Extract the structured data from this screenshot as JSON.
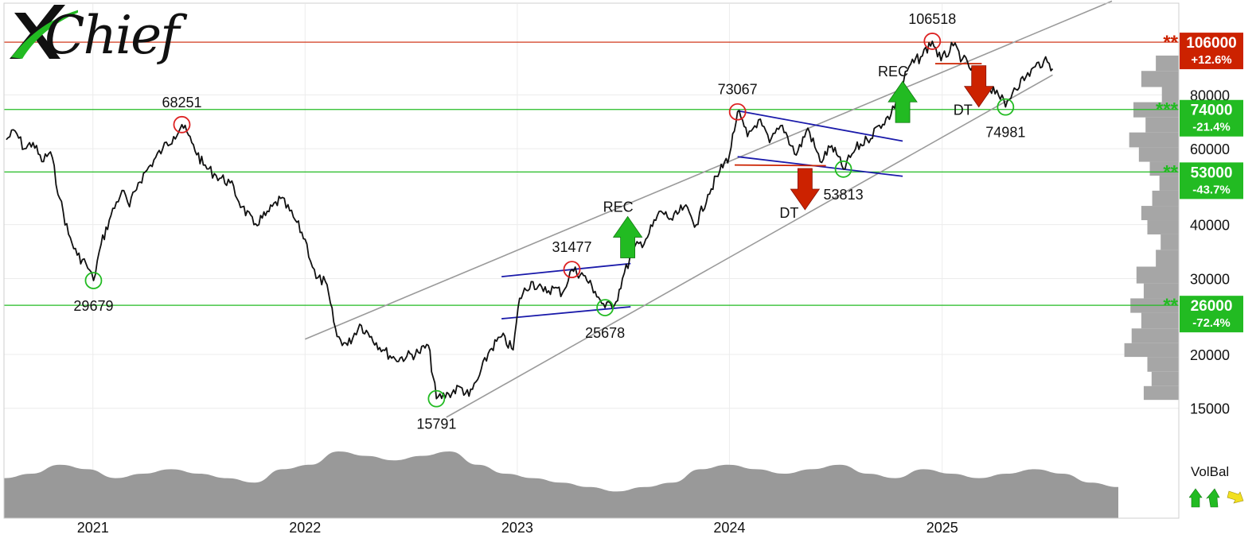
{
  "brand": {
    "logo_text": "Chief",
    "logo_letter": "X"
  },
  "chart_data": {
    "type": "line",
    "y_scale": "log",
    "ylim": [
      14000,
      130000
    ],
    "xlim": [
      "2020-08-01",
      "2025-10-31"
    ],
    "y_ticks": [
      "15000",
      "20000",
      "30000",
      "40000",
      "60000",
      "80000"
    ],
    "y_tick_values": [
      15000,
      20000,
      30000,
      40000,
      60000,
      80000
    ],
    "x_ticks": [
      "2021",
      "2022",
      "2023",
      "2024",
      "2025"
    ],
    "x_tick_dates": [
      "2021-01-01",
      "2022-01-01",
      "2023-01-01",
      "2024-01-01",
      "2025-01-01"
    ],
    "price_series": [
      {
        "x": "2020-08-05",
        "y": 63000
      },
      {
        "x": "2020-08-20",
        "y": 66000
      },
      {
        "x": "2020-09-05",
        "y": 60000
      },
      {
        "x": "2020-09-20",
        "y": 62000
      },
      {
        "x": "2020-10-05",
        "y": 56000
      },
      {
        "x": "2020-10-20",
        "y": 59000
      },
      {
        "x": "2020-11-05",
        "y": 46000
      },
      {
        "x": "2020-11-20",
        "y": 38000
      },
      {
        "x": "2020-12-05",
        "y": 34000
      },
      {
        "x": "2020-12-20",
        "y": 32500
      },
      {
        "x": "2021-01-02",
        "y": 29679
      },
      {
        "x": "2021-01-15",
        "y": 36000
      },
      {
        "x": "2021-02-01",
        "y": 42000
      },
      {
        "x": "2021-02-20",
        "y": 48000
      },
      {
        "x": "2021-03-05",
        "y": 44000
      },
      {
        "x": "2021-03-20",
        "y": 50000
      },
      {
        "x": "2021-04-10",
        "y": 55000
      },
      {
        "x": "2021-05-01",
        "y": 60000
      },
      {
        "x": "2021-05-20",
        "y": 64000
      },
      {
        "x": "2021-06-03",
        "y": 68251
      },
      {
        "x": "2021-06-20",
        "y": 62000
      },
      {
        "x": "2021-07-10",
        "y": 55000
      },
      {
        "x": "2021-08-01",
        "y": 52000
      },
      {
        "x": "2021-08-25",
        "y": 50000
      },
      {
        "x": "2021-09-15",
        "y": 44000
      },
      {
        "x": "2021-10-05",
        "y": 40000
      },
      {
        "x": "2021-10-25",
        "y": 42000
      },
      {
        "x": "2021-11-20",
        "y": 46000
      },
      {
        "x": "2021-12-15",
        "y": 41000
      },
      {
        "x": "2022-01-01",
        "y": 37000
      },
      {
        "x": "2022-01-20",
        "y": 30000
      },
      {
        "x": "2022-02-05",
        "y": 29500
      },
      {
        "x": "2022-02-25",
        "y": 22000
      },
      {
        "x": "2022-03-15",
        "y": 21000
      },
      {
        "x": "2022-04-05",
        "y": 23500
      },
      {
        "x": "2022-04-25",
        "y": 22000
      },
      {
        "x": "2022-05-15",
        "y": 20500
      },
      {
        "x": "2022-06-05",
        "y": 19500
      },
      {
        "x": "2022-06-25",
        "y": 19800
      },
      {
        "x": "2022-07-15",
        "y": 20200
      },
      {
        "x": "2022-08-01",
        "y": 21000
      },
      {
        "x": "2022-08-15",
        "y": 15791
      },
      {
        "x": "2022-09-05",
        "y": 16200
      },
      {
        "x": "2022-09-25",
        "y": 16800
      },
      {
        "x": "2022-10-10",
        "y": 16000
      },
      {
        "x": "2022-10-25",
        "y": 17500
      },
      {
        "x": "2022-11-15",
        "y": 20500
      },
      {
        "x": "2022-12-05",
        "y": 22000
      },
      {
        "x": "2022-12-25",
        "y": 20500
      },
      {
        "x": "2023-01-05",
        "y": 27000
      },
      {
        "x": "2023-01-25",
        "y": 29500
      },
      {
        "x": "2023-02-15",
        "y": 28000
      },
      {
        "x": "2023-03-05",
        "y": 28500
      },
      {
        "x": "2023-03-20",
        "y": 27800
      },
      {
        "x": "2023-04-05",
        "y": 31477
      },
      {
        "x": "2023-04-25",
        "y": 30500
      },
      {
        "x": "2023-05-15",
        "y": 28000
      },
      {
        "x": "2023-06-01",
        "y": 25678
      },
      {
        "x": "2023-06-20",
        "y": 26500
      },
      {
        "x": "2023-07-01",
        "y": 30000
      },
      {
        "x": "2023-07-20",
        "y": 35000
      },
      {
        "x": "2023-08-10",
        "y": 37000
      },
      {
        "x": "2023-09-05",
        "y": 43000
      },
      {
        "x": "2023-09-25",
        "y": 41000
      },
      {
        "x": "2023-10-15",
        "y": 44000
      },
      {
        "x": "2023-11-05",
        "y": 40000
      },
      {
        "x": "2023-11-25",
        "y": 47000
      },
      {
        "x": "2023-12-15",
        "y": 53000
      },
      {
        "x": "2024-01-01",
        "y": 58000
      },
      {
        "x": "2024-01-15",
        "y": 73067
      },
      {
        "x": "2024-02-01",
        "y": 64000
      },
      {
        "x": "2024-02-20",
        "y": 70000
      },
      {
        "x": "2024-03-10",
        "y": 62000
      },
      {
        "x": "2024-04-01",
        "y": 68000
      },
      {
        "x": "2024-04-25",
        "y": 58000
      },
      {
        "x": "2024-05-15",
        "y": 67000
      },
      {
        "x": "2024-06-05",
        "y": 56000
      },
      {
        "x": "2024-06-25",
        "y": 61000
      },
      {
        "x": "2024-07-15",
        "y": 53813
      },
      {
        "x": "2024-08-05",
        "y": 60000
      },
      {
        "x": "2024-08-25",
        "y": 63000
      },
      {
        "x": "2024-09-15",
        "y": 68000
      },
      {
        "x": "2024-10-05",
        "y": 72000
      },
      {
        "x": "2024-10-20",
        "y": 82000
      },
      {
        "x": "2024-11-05",
        "y": 93000
      },
      {
        "x": "2024-11-25",
        "y": 98000
      },
      {
        "x": "2024-12-15",
        "y": 106518
      },
      {
        "x": "2024-12-30",
        "y": 96000
      },
      {
        "x": "2025-01-20",
        "y": 104000
      },
      {
        "x": "2025-02-05",
        "y": 97000
      },
      {
        "x": "2025-02-25",
        "y": 90000
      },
      {
        "x": "2025-03-15",
        "y": 84000
      },
      {
        "x": "2025-04-05",
        "y": 82000
      },
      {
        "x": "2025-04-20",
        "y": 74981
      },
      {
        "x": "2025-05-05",
        "y": 83000
      },
      {
        "x": "2025-05-25",
        "y": 88000
      },
      {
        "x": "2025-06-10",
        "y": 93000
      },
      {
        "x": "2025-06-25",
        "y": 96000
      },
      {
        "x": "2025-07-10",
        "y": 92000
      }
    ],
    "horizontal_levels": [
      {
        "value": 106000,
        "color": "#cc2200",
        "label": "106000",
        "pct": "+12.6%",
        "stars": "**"
      },
      {
        "value": 74000,
        "color": "#22bb22",
        "label": "74000",
        "pct": "-21.4%",
        "stars": "***"
      },
      {
        "value": 53000,
        "color": "#22bb22",
        "label": "53000",
        "pct": "-43.7%",
        "stars": "**"
      },
      {
        "value": 26000,
        "color": "#22bb22",
        "label": "26000",
        "pct": "-72.4%",
        "stars": "**"
      }
    ],
    "channel_lines": [
      {
        "x1": "2022-01-01",
        "y1": 21700,
        "x2": "2025-10-20",
        "y2": 132000
      },
      {
        "x1": "2022-09-01",
        "y1": 14300,
        "x2": "2025-07-10",
        "y2": 89000
      }
    ],
    "pattern_lines": [
      {
        "x1": "2022-12-05",
        "y1": 30300,
        "x2": "2023-07-15",
        "y2": 32500,
        "color": "#1a1aaa"
      },
      {
        "x1": "2022-12-05",
        "y1": 24200,
        "x2": "2023-07-15",
        "y2": 25800,
        "color": "#1a1aaa"
      },
      {
        "x1": "2024-01-15",
        "y1": 73500,
        "x2": "2024-10-25",
        "y2": 62500,
        "color": "#1a1aaa"
      },
      {
        "x1": "2024-01-15",
        "y1": 57500,
        "x2": "2024-10-25",
        "y2": 51800,
        "color": "#1a1aaa"
      },
      {
        "x1": "2024-01-10",
        "y1": 55000,
        "x2": "2024-06-15",
        "y2": 54800,
        "color": "#cc2200"
      },
      {
        "x1": "2024-12-20",
        "y1": 94500,
        "x2": "2025-03-10",
        "y2": 94500,
        "color": "#cc2200"
      }
    ],
    "extrema": [
      {
        "x": "2021-06-03",
        "y": 68251,
        "label": "68251",
        "kind": "high"
      },
      {
        "x": "2021-01-02",
        "y": 29679,
        "label": "29679",
        "kind": "low"
      },
      {
        "x": "2022-08-15",
        "y": 15791,
        "label": "15791",
        "kind": "low"
      },
      {
        "x": "2023-04-05",
        "y": 31477,
        "label": "31477",
        "kind": "high"
      },
      {
        "x": "2023-06-01",
        "y": 25678,
        "label": "25678",
        "kind": "low"
      },
      {
        "x": "2024-01-15",
        "y": 73067,
        "label": "73067",
        "kind": "high"
      },
      {
        "x": "2024-07-15",
        "y": 53813,
        "label": "53813",
        "kind": "low"
      },
      {
        "x": "2024-12-15",
        "y": 106518,
        "label": "106518",
        "kind": "high"
      },
      {
        "x": "2025-04-20",
        "y": 74981,
        "label": "74981",
        "kind": "low"
      }
    ],
    "signals": [
      {
        "x": "2023-07-10",
        "y": 33500,
        "label": "REC",
        "direction": "up",
        "color": "#22bb22"
      },
      {
        "x": "2024-05-10",
        "y": 54000,
        "label": "DT",
        "direction": "down",
        "color": "#cc2200"
      },
      {
        "x": "2024-10-25",
        "y": 69000,
        "label": "REC",
        "direction": "up",
        "color": "#22bb22"
      },
      {
        "x": "2025-03-05",
        "y": 93500,
        "label": "DT",
        "direction": "down",
        "color": "#cc2200"
      }
    ],
    "volume_profile": [
      {
        "price": 95000,
        "width": 0.38
      },
      {
        "price": 87000,
        "width": 0.62
      },
      {
        "price": 80000,
        "width": 0.28
      },
      {
        "price": 74000,
        "width": 0.75
      },
      {
        "price": 68000,
        "width": 0.55
      },
      {
        "price": 63000,
        "width": 0.82
      },
      {
        "price": 58000,
        "width": 0.66
      },
      {
        "price": 54000,
        "width": 0.48
      },
      {
        "price": 50000,
        "width": 0.32
      },
      {
        "price": 46000,
        "width": 0.44
      },
      {
        "price": 42500,
        "width": 0.62
      },
      {
        "price": 39500,
        "width": 0.52
      },
      {
        "price": 36500,
        "width": 0.3
      },
      {
        "price": 33500,
        "width": 0.38
      },
      {
        "price": 30500,
        "width": 0.7
      },
      {
        "price": 28000,
        "width": 0.58
      },
      {
        "price": 26000,
        "width": 0.8
      },
      {
        "price": 24000,
        "width": 0.62
      },
      {
        "price": 22000,
        "width": 0.78
      },
      {
        "price": 20500,
        "width": 0.9
      },
      {
        "price": 19000,
        "width": 0.52
      },
      {
        "price": 17500,
        "width": 0.45
      },
      {
        "price": 16300,
        "width": 0.58
      }
    ],
    "volume_balance": [
      0.45,
      0.5,
      0.6,
      0.55,
      0.45,
      0.5,
      0.55,
      0.5,
      0.45,
      0.4,
      0.55,
      0.6,
      0.75,
      0.7,
      0.65,
      0.7,
      0.75,
      0.6,
      0.5,
      0.45,
      0.4,
      0.35,
      0.3,
      0.35,
      0.4,
      0.55,
      0.6,
      0.55,
      0.5,
      0.55,
      0.6,
      0.5,
      0.45,
      0.55,
      0.5,
      0.45,
      0.5,
      0.55,
      0.5,
      0.4,
      0.35
    ],
    "volbal_label": "VolBal"
  }
}
